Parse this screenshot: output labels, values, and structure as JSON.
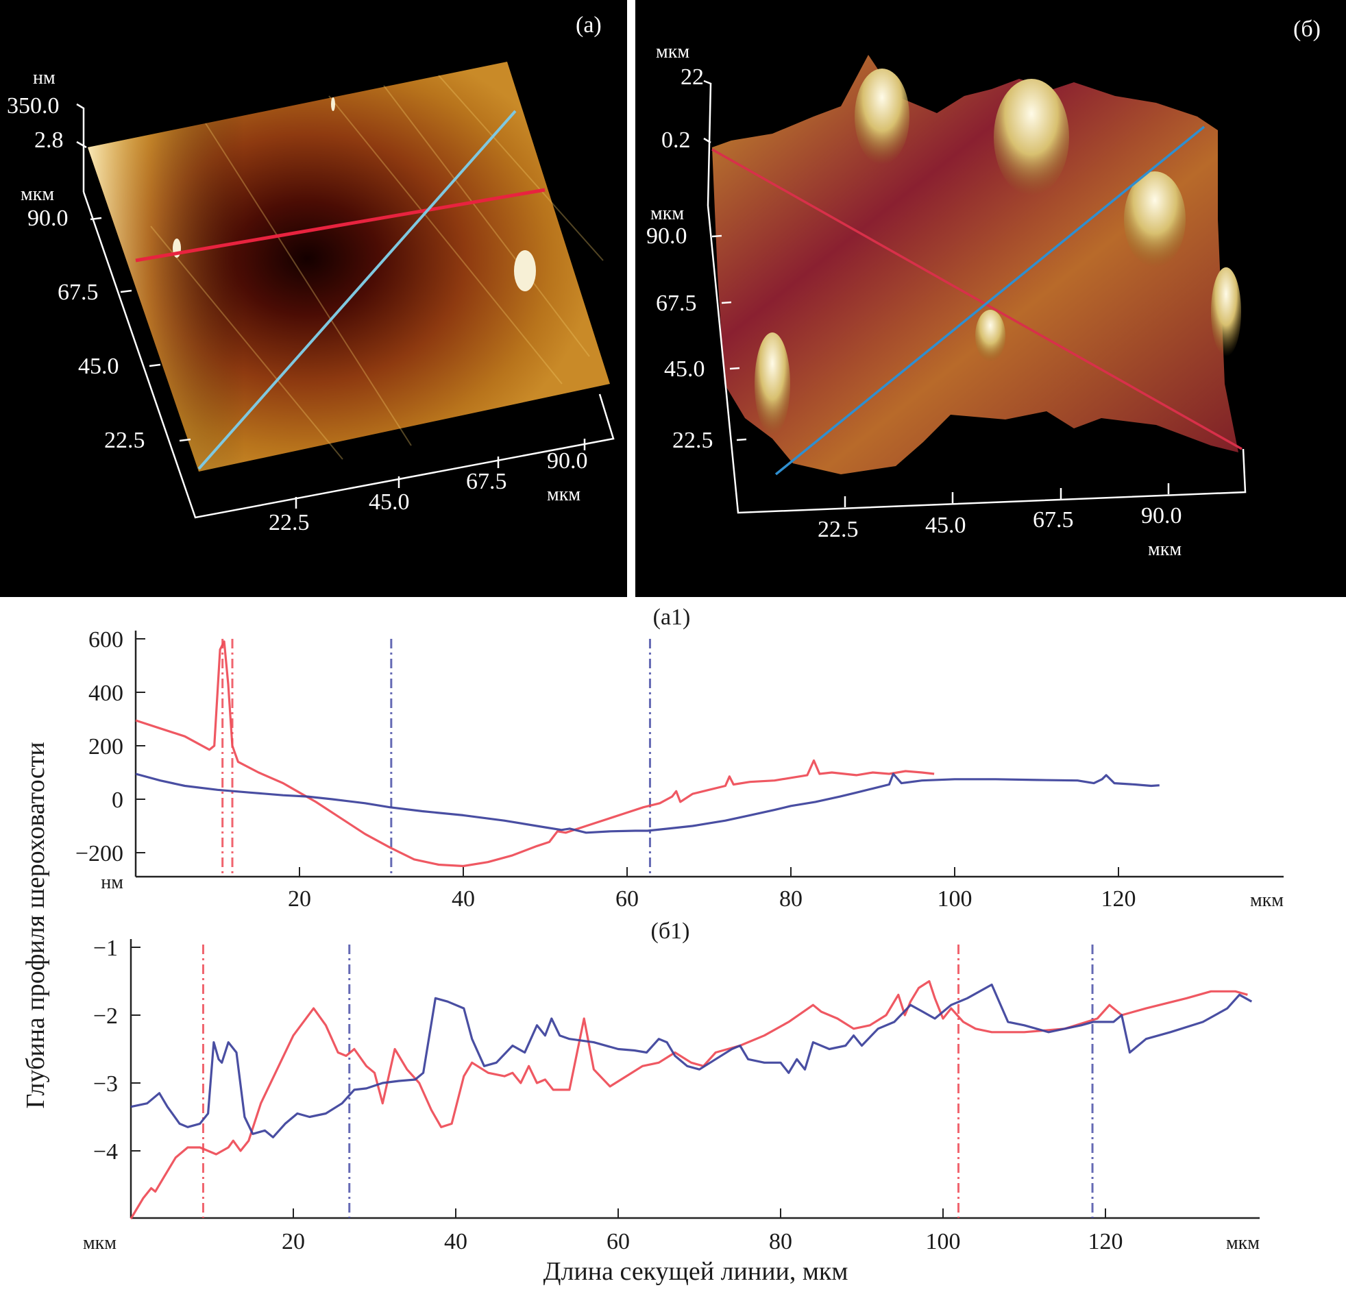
{
  "panels_3d": [
    {
      "id": "a",
      "label": "(a)",
      "z_unit": "нм",
      "z_ticks": [
        "350.0",
        "2.8"
      ],
      "y_unit": "мкм",
      "y_ticks": [
        "90.0",
        "67.5",
        "45.0",
        "22.5"
      ],
      "x_ticks": [
        "22.5",
        "45.0",
        "67.5",
        "90.0"
      ],
      "x_unit": "мкм",
      "line_colors": {
        "red": "#e8233f",
        "cyan": "#7fc8e0"
      }
    },
    {
      "id": "b",
      "label": "(б)",
      "z_unit": "мкм",
      "z_ticks": [
        "22",
        "0.2"
      ],
      "y_unit": "мкм",
      "y_ticks": [
        "90.0",
        "67.5",
        "45.0",
        "22.5"
      ],
      "x_ticks": [
        "22.5",
        "45.0",
        "67.5",
        "90.0"
      ],
      "x_unit": "мкм",
      "line_colors": {
        "red": "#d8304a",
        "blue": "#2f8fd0"
      }
    }
  ],
  "shared_labels": {
    "ylabel": "Глубина профиля шероховатости",
    "xlabel": "Длина секущей линии, мкм"
  },
  "chart_data": [
    {
      "type": "line",
      "title": "(a1)",
      "xlabel": "мкм",
      "ylabel": "нм",
      "xlim": [
        0,
        140
      ],
      "ylim": [
        -290,
        600
      ],
      "xticks": [
        20,
        40,
        60,
        80,
        100,
        120
      ],
      "yticks": [
        600,
        400,
        200,
        0,
        -200
      ],
      "ytick_labels": [
        "600",
        "400",
        "200",
        "0",
        "−200"
      ],
      "grid": false,
      "series": [
        {
          "name": "red profile",
          "color": "#ee4a55",
          "x": [
            0,
            3,
            6,
            9,
            9.6,
            10.3,
            10.8,
            11.3,
            11.8,
            12.5,
            15,
            18,
            20,
            22,
            25,
            28,
            31,
            34,
            37,
            40,
            43,
            46,
            49,
            50.5,
            51.5,
            52.5,
            55,
            58,
            60,
            62,
            64,
            65.5,
            66,
            66.5,
            68,
            70,
            72,
            72.5,
            73,
            75,
            78,
            80,
            82,
            82.8,
            83.5,
            85,
            88,
            90,
            92,
            94,
            96,
            97.5
          ],
          "y": [
            295,
            265,
            235,
            185,
            200,
            560,
            590,
            430,
            200,
            140,
            100,
            60,
            25,
            -10,
            -70,
            -130,
            -180,
            -225,
            -245,
            -250,
            -235,
            -210,
            -175,
            -160,
            -120,
            -125,
            -100,
            -70,
            -50,
            -30,
            -15,
            10,
            30,
            -10,
            20,
            35,
            50,
            85,
            55,
            65,
            70,
            80,
            90,
            145,
            95,
            100,
            90,
            100,
            95,
            105,
            100,
            95
          ]
        },
        {
          "name": "blue profile",
          "color": "#3a3f9a",
          "x": [
            0,
            3,
            6,
            10,
            14,
            18,
            21,
            24,
            28,
            31,
            35,
            40,
            45,
            50,
            52,
            53,
            55,
            58,
            61,
            62.5,
            65,
            68,
            70,
            72,
            75,
            78,
            80,
            83,
            86,
            88,
            90,
            92,
            92.5,
            93.5,
            96,
            100,
            105,
            110,
            115,
            117,
            118,
            118.5,
            119.5,
            122,
            124,
            125
          ],
          "y": [
            95,
            70,
            50,
            35,
            25,
            15,
            10,
            0,
            -15,
            -30,
            -45,
            -60,
            -80,
            -105,
            -115,
            -110,
            -125,
            -120,
            -118,
            -118,
            -110,
            -100,
            -90,
            -80,
            -60,
            -40,
            -25,
            -10,
            10,
            25,
            40,
            55,
            95,
            60,
            70,
            75,
            75,
            72,
            70,
            60,
            75,
            90,
            60,
            55,
            50,
            52
          ]
        }
      ],
      "markers": [
        {
          "x": 10.6,
          "color": "#ee4a55",
          "style": "dash-dot"
        },
        {
          "x": 11.8,
          "color": "#ee4a55",
          "style": "dash-dot"
        },
        {
          "x": 31.2,
          "color": "#4a4fa8",
          "style": "dash-dot"
        },
        {
          "x": 62.8,
          "color": "#4a4fa8",
          "style": "dash-dot"
        }
      ]
    },
    {
      "type": "line",
      "title": "(б1)",
      "xlabel": "мкм",
      "ylabel": "мкм",
      "xlim": [
        0,
        139
      ],
      "ylim": [
        -5,
        -1
      ],
      "xticks": [
        20,
        40,
        60,
        80,
        100,
        120
      ],
      "yticks": [
        -1,
        -2,
        -3,
        -4
      ],
      "ytick_labels": [
        "−1",
        "−2",
        "−3",
        "−4"
      ],
      "grid": false,
      "series": [
        {
          "name": "red profile",
          "color": "#ee4a55",
          "x": [
            0,
            1.5,
            2.5,
            3,
            4,
            5.5,
            7,
            8.5,
            9.5,
            10.5,
            12,
            12.6,
            13.5,
            14.5,
            16,
            18,
            20,
            22.5,
            24,
            25.5,
            26.5,
            27.5,
            29,
            30,
            31,
            32.5,
            34,
            35.5,
            37,
            38.2,
            39.5,
            41,
            42,
            44,
            46,
            47,
            48,
            49,
            50,
            51,
            52,
            54,
            55.8,
            57,
            59,
            61,
            63,
            65,
            67,
            69,
            70.5,
            72,
            75,
            78,
            81,
            84,
            85,
            87,
            89,
            91,
            93,
            94.5,
            95.3,
            96,
            97,
            98.3,
            99,
            100,
            101,
            102.5,
            104,
            106,
            110,
            115,
            119,
            120.5,
            122,
            125,
            130,
            133,
            136,
            137.5
          ],
          "y": [
            -5,
            -4.7,
            -4.55,
            -4.6,
            -4.4,
            -4.1,
            -3.95,
            -3.95,
            -4.0,
            -4.05,
            -3.95,
            -3.85,
            -4.0,
            -3.85,
            -3.3,
            -2.8,
            -2.3,
            -1.9,
            -2.15,
            -2.55,
            -2.6,
            -2.5,
            -2.75,
            -2.85,
            -3.3,
            -2.5,
            -2.8,
            -3.0,
            -3.4,
            -3.65,
            -3.6,
            -2.9,
            -2.7,
            -2.85,
            -2.9,
            -2.85,
            -3.0,
            -2.75,
            -3.0,
            -2.95,
            -3.1,
            -3.1,
            -2.05,
            -2.8,
            -3.05,
            -2.9,
            -2.75,
            -2.7,
            -2.55,
            -2.7,
            -2.75,
            -2.55,
            -2.45,
            -2.3,
            -2.1,
            -1.85,
            -1.95,
            -2.05,
            -2.2,
            -2.15,
            -2.0,
            -1.7,
            -2.0,
            -1.8,
            -1.6,
            -1.5,
            -1.75,
            -2.05,
            -1.9,
            -2.1,
            -2.2,
            -2.25,
            -2.25,
            -2.2,
            -2.05,
            -1.85,
            -2.0,
            -1.9,
            -1.75,
            -1.65,
            -1.65,
            -1.7
          ]
        },
        {
          "name": "blue profile",
          "color": "#3a3f9a",
          "x": [
            0,
            2,
            3.5,
            4.5,
            6,
            7,
            8.5,
            9.5,
            10.2,
            10.8,
            11.2,
            12,
            13,
            14,
            15,
            16.5,
            17.5,
            19,
            20.5,
            22,
            24,
            26,
            27.5,
            29,
            31,
            33,
            35,
            36,
            37.5,
            39,
            41,
            42,
            43.5,
            45,
            47,
            48.5,
            50,
            51,
            51.8,
            52.8,
            54,
            57,
            60,
            62,
            63.5,
            65,
            66,
            67,
            68.5,
            70,
            72,
            74,
            75,
            76,
            78,
            80,
            81,
            82,
            83,
            84,
            86,
            88,
            89,
            90,
            92,
            94,
            96,
            97.5,
            99,
            101,
            103,
            106,
            108,
            110,
            113,
            117,
            118.5,
            121,
            122,
            123,
            125,
            128,
            132,
            135,
            136.5,
            138
          ],
          "y": [
            -3.35,
            -3.3,
            -3.15,
            -3.35,
            -3.6,
            -3.65,
            -3.6,
            -3.45,
            -2.4,
            -2.65,
            -2.7,
            -2.4,
            -2.55,
            -3.5,
            -3.75,
            -3.7,
            -3.8,
            -3.6,
            -3.45,
            -3.5,
            -3.45,
            -3.3,
            -3.1,
            -3.08,
            -3.0,
            -2.97,
            -2.95,
            -2.85,
            -1.75,
            -1.8,
            -1.9,
            -2.35,
            -2.75,
            -2.7,
            -2.45,
            -2.55,
            -2.15,
            -2.3,
            -2.05,
            -2.3,
            -2.35,
            -2.4,
            -2.5,
            -2.52,
            -2.55,
            -2.35,
            -2.4,
            -2.6,
            -2.75,
            -2.8,
            -2.65,
            -2.5,
            -2.45,
            -2.65,
            -2.7,
            -2.7,
            -2.85,
            -2.65,
            -2.8,
            -2.4,
            -2.5,
            -2.45,
            -2.3,
            -2.45,
            -2.2,
            -2.1,
            -1.85,
            -1.95,
            -2.05,
            -1.85,
            -1.75,
            -1.55,
            -2.1,
            -2.15,
            -2.25,
            -2.15,
            -2.1,
            -2.1,
            -2.0,
            -2.55,
            -2.35,
            -2.25,
            -2.1,
            -1.9,
            -1.7,
            -1.8
          ]
        }
      ],
      "markers": [
        {
          "x": 8.9,
          "color": "#ee4a55",
          "style": "dash-dot"
        },
        {
          "x": 26.9,
          "color": "#4a4fa8",
          "style": "dash-dot"
        },
        {
          "x": 101.9,
          "color": "#ee4a55",
          "style": "dash-dot"
        },
        {
          "x": 118.4,
          "color": "#4a4fa8",
          "style": "dash-dot"
        }
      ]
    }
  ]
}
